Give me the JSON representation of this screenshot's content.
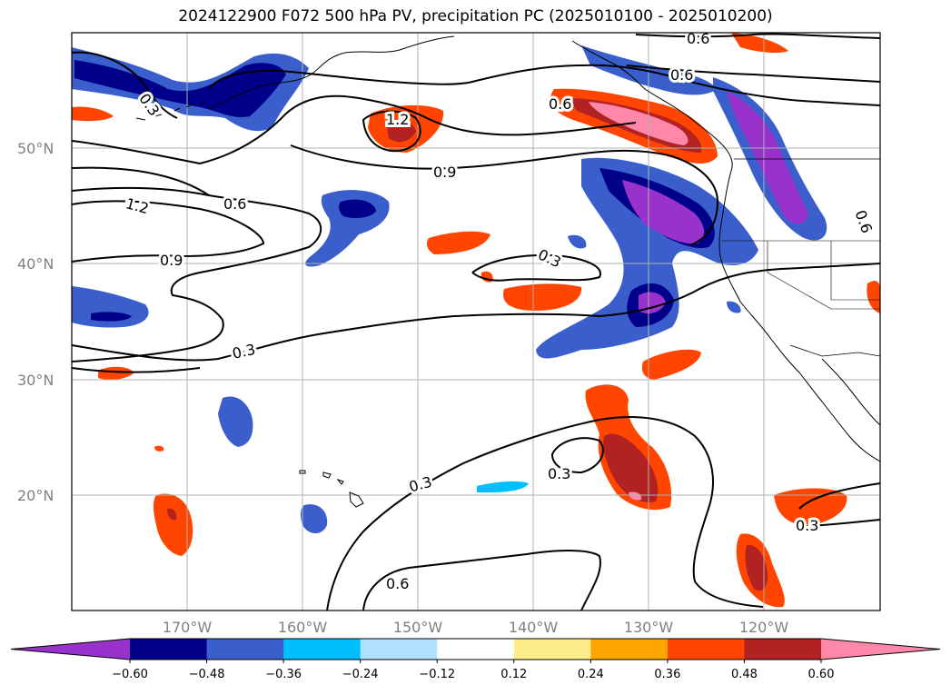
{
  "title": "2024122900 F072 500 hPa PV, precipitation PC (2025010100 - 2025010200)",
  "map": {
    "lat_labels": [
      "50°N",
      "40°N",
      "30°N",
      "20°N"
    ],
    "lon_labels": [
      "170°W",
      "160°W",
      "150°W",
      "140°W",
      "130°W",
      "120°W"
    ],
    "contour_labels": [
      "0.6",
      "0.6",
      "0.6",
      "1.2",
      "0.3",
      "0.9",
      "0.6",
      "1.2",
      "0.9",
      "0.3",
      "0.3",
      "0.3",
      "0.3",
      "0.6",
      "0.6",
      "0.3"
    ]
  },
  "colorbar": {
    "tick_labels": [
      "−0.60",
      "−0.48",
      "−0.36",
      "−0.24",
      "−0.12",
      "0.12",
      "0.24",
      "0.36",
      "0.48",
      "0.60"
    ],
    "colors": [
      "#9932CC",
      "#00008B",
      "#3A5FCD",
      "#00BFFF",
      "#B0E2FF",
      "#FFFFFF",
      "#FFEC8B",
      "#FFA500",
      "#FF4500",
      "#B22222",
      "#FF88AA"
    ]
  }
}
